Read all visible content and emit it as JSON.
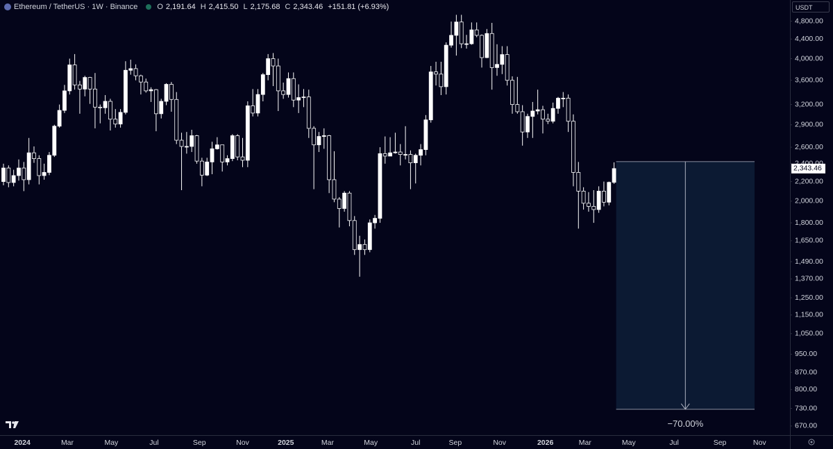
{
  "chart_data": {
    "type": "candlestick",
    "title": "Ethereum / TetherUS · 1W · Binance",
    "ohlc_legend": [
      {
        "key": "O",
        "label": "2,191.64"
      },
      {
        "key": "H",
        "label": "2,415.50"
      },
      {
        "key": "L",
        "label": "2,175.68"
      },
      {
        "key": "C",
        "label": "2,343.46"
      }
    ],
    "change_label": "+151.81 (+6.93%)",
    "currency": "USDT",
    "last_price": {
      "value": 2343.46,
      "label": "2,343.46"
    },
    "up_color": "#ffffff",
    "down_color": "#05061a",
    "log_scale": true,
    "ylim": [
      641,
      5320
    ],
    "yticks": [
      {
        "value": 4800,
        "label": "4,800.00"
      },
      {
        "value": 4400,
        "label": "4,400.00"
      },
      {
        "value": 4000,
        "label": "4,000.00"
      },
      {
        "value": 3600,
        "label": "3,600.00"
      },
      {
        "value": 3200,
        "label": "3,200.00"
      },
      {
        "value": 2900,
        "label": "2,900.00"
      },
      {
        "value": 2600,
        "label": "2,600.00"
      },
      {
        "value": 2400,
        "label": "2,400.00"
      },
      {
        "value": 2200,
        "label": "2,200.00"
      },
      {
        "value": 2000,
        "label": "2,000.00"
      },
      {
        "value": 1800,
        "label": "1,800.00"
      },
      {
        "value": 1650,
        "label": "1,650.00"
      },
      {
        "value": 1490,
        "label": "1,490.00"
      },
      {
        "value": 1370,
        "label": "1,370.00"
      },
      {
        "value": 1250,
        "label": "1,250.00"
      },
      {
        "value": 1150,
        "label": "1,150.00"
      },
      {
        "value": 1050,
        "label": "1,050.00"
      },
      {
        "value": 950,
        "label": "950.00"
      },
      {
        "value": 870,
        "label": "870.00"
      },
      {
        "value": 800,
        "label": "800.00"
      },
      {
        "value": 730,
        "label": "730.00"
      },
      {
        "value": 670,
        "label": "670.00"
      }
    ],
    "xticks": [
      {
        "value": 3.7,
        "label": "2024"
      },
      {
        "value": 12.55,
        "label": "Mar"
      },
      {
        "value": 21.2,
        "label": "May"
      },
      {
        "value": 29.6,
        "label": "Jul"
      },
      {
        "value": 38.5,
        "label": "Sep"
      },
      {
        "value": 47,
        "label": "Nov"
      },
      {
        "value": 55.5,
        "label": "2025"
      },
      {
        "value": 63.7,
        "label": "Mar"
      },
      {
        "value": 72.2,
        "label": "May"
      },
      {
        "value": 81,
        "label": "Jul"
      },
      {
        "value": 88.8,
        "label": "Sep"
      },
      {
        "value": 97.5,
        "label": "Nov"
      },
      {
        "value": 106.5,
        "label": "2026"
      },
      {
        "value": 114.3,
        "label": "Mar"
      },
      {
        "value": 122.9,
        "label": "May"
      },
      {
        "value": 131.8,
        "label": "Jul"
      },
      {
        "value": 140.8,
        "label": "Sep"
      },
      {
        "value": 148.6,
        "label": "Nov"
      }
    ],
    "open": [
      2200,
      2350,
      2190,
      2265,
      2350,
      2220,
      2530,
      2460,
      2265,
      2300,
      2500,
      2880,
      3110,
      3420,
      3880,
      3520,
      3450,
      3650,
      3450,
      3160,
      3150,
      3250,
      2980,
      2910,
      3080,
      3780,
      3810,
      3680,
      3570,
      3420,
      3440,
      3060,
      3250,
      3530,
      3280,
      2690,
      2610,
      2610,
      2750,
      2430,
      2270,
      2420,
      2580,
      2630,
      2420,
      2460,
      2750,
      2480,
      2440,
      3180,
      3070,
      3360,
      3700,
      4000,
      3860,
      3420,
      3360,
      3630,
      3270,
      3310,
      3320,
      2850,
      2630,
      2740,
      2750,
      2220,
      2020,
      1930,
      2080,
      1820,
      1580,
      1620,
      1580,
      1800,
      1840,
      2520,
      2490,
      2530,
      2540,
      2510,
      2510,
      2410,
      2500,
      2570,
      2970,
      3750,
      3710,
      3490,
      4270,
      4480,
      4780,
      4300,
      4300,
      4600,
      4480,
      4020,
      4520,
      3830,
      3890,
      4080,
      3600,
      3200,
      3090,
      2800,
      3020,
      3100,
      3120,
      2980,
      2950,
      3140,
      3300,
      3300,
      2950,
      2300,
      2100,
      1980,
      1950,
      1920,
      2100,
      1990,
      2191.64
    ],
    "high": [
      2400,
      2380,
      2330,
      2450,
      2420,
      2720,
      2610,
      2500,
      2400,
      2540,
      2900,
      3200,
      3520,
      4000,
      4090,
      3590,
      3680,
      3660,
      3730,
      3200,
      3350,
      3290,
      3130,
      3130,
      3950,
      3980,
      3890,
      3700,
      3630,
      3480,
      3450,
      3290,
      3550,
      3570,
      3400,
      2790,
      2800,
      2830,
      2760,
      2470,
      2470,
      2670,
      2730,
      2630,
      2500,
      2770,
      2770,
      2720,
      3250,
      3450,
      3450,
      3730,
      4090,
      4110,
      4000,
      3560,
      3740,
      3740,
      3530,
      3450,
      3440,
      2880,
      2800,
      2850,
      2760,
      2550,
      2040,
      2100,
      2100,
      1860,
      1690,
      1660,
      1830,
      1870,
      2600,
      2740,
      2730,
      2790,
      2640,
      2880,
      2560,
      2520,
      2640,
      3040,
      3860,
      3940,
      3940,
      4330,
      4790,
      4950,
      4950,
      4490,
      4770,
      4770,
      4500,
      4620,
      4760,
      4290,
      4250,
      4250,
      3670,
      3660,
      3190,
      3060,
      3240,
      3440,
      3180,
      3060,
      3230,
      3320,
      3400,
      3360,
      3050,
      2420,
      2140,
      2090,
      2110,
      2150,
      2200,
      2200,
      2415.5
    ],
    "low": [
      2160,
      2140,
      2150,
      2210,
      2100,
      2170,
      2410,
      2170,
      2220,
      2270,
      2480,
      2860,
      3070,
      3360,
      3440,
      3060,
      3330,
      3210,
      2850,
      2920,
      3060,
      2820,
      2860,
      2860,
      3050,
      3700,
      3600,
      3360,
      3390,
      3240,
      2810,
      2990,
      3190,
      3090,
      2640,
      2110,
      2520,
      2540,
      2400,
      2150,
      2260,
      2280,
      2570,
      2310,
      2380,
      2430,
      2440,
      2360,
      2360,
      3020,
      3020,
      3250,
      3600,
      3500,
      3100,
      3290,
      3310,
      3160,
      3070,
      3160,
      2720,
      2120,
      2540,
      2580,
      2080,
      1990,
      1760,
      1900,
      1770,
      1540,
      1385,
      1540,
      1560,
      1750,
      1800,
      2400,
      2490,
      2520,
      2380,
      2450,
      2120,
      2180,
      2380,
      2500,
      2930,
      3510,
      3350,
      3360,
      4220,
      4060,
      4210,
      4200,
      4280,
      4440,
      3830,
      4010,
      3440,
      3680,
      3710,
      3510,
      3060,
      3060,
      2620,
      2720,
      2720,
      3050,
      2780,
      2910,
      2920,
      3060,
      3160,
      2800,
      2150,
      1750,
      1920,
      1900,
      1800,
      1890,
      1950,
      1960,
      2175.68
    ],
    "close": [
      2350,
      2190,
      2265,
      2350,
      2220,
      2530,
      2460,
      2265,
      2300,
      2500,
      2880,
      3110,
      3420,
      3880,
      3520,
      3450,
      3650,
      3450,
      3160,
      3150,
      3250,
      2980,
      2910,
      3080,
      3780,
      3810,
      3680,
      3570,
      3420,
      3440,
      3060,
      3250,
      3530,
      3280,
      2690,
      2610,
      2610,
      2750,
      2430,
      2270,
      2420,
      2580,
      2630,
      2420,
      2460,
      2750,
      2480,
      2440,
      3180,
      3070,
      3360,
      3700,
      4000,
      3860,
      3420,
      3360,
      3630,
      3270,
      3310,
      3320,
      2850,
      2630,
      2740,
      2750,
      2220,
      2020,
      1930,
      2080,
      1820,
      1580,
      1620,
      1580,
      1800,
      1840,
      2520,
      2490,
      2530,
      2540,
      2510,
      2510,
      2410,
      2500,
      2570,
      2970,
      3750,
      3710,
      3490,
      4270,
      4480,
      4780,
      4300,
      4300,
      4600,
      4480,
      4020,
      4520,
      3830,
      3890,
      4080,
      3600,
      3200,
      3090,
      2800,
      3020,
      3100,
      3120,
      2980,
      2950,
      3140,
      3300,
      3300,
      2950,
      2300,
      2100,
      1980,
      1950,
      1920,
      2100,
      1990,
      2191.64,
      2343.46
    ],
    "projection": {
      "from": 2424,
      "to": 727,
      "label": "−70.00%"
    }
  }
}
